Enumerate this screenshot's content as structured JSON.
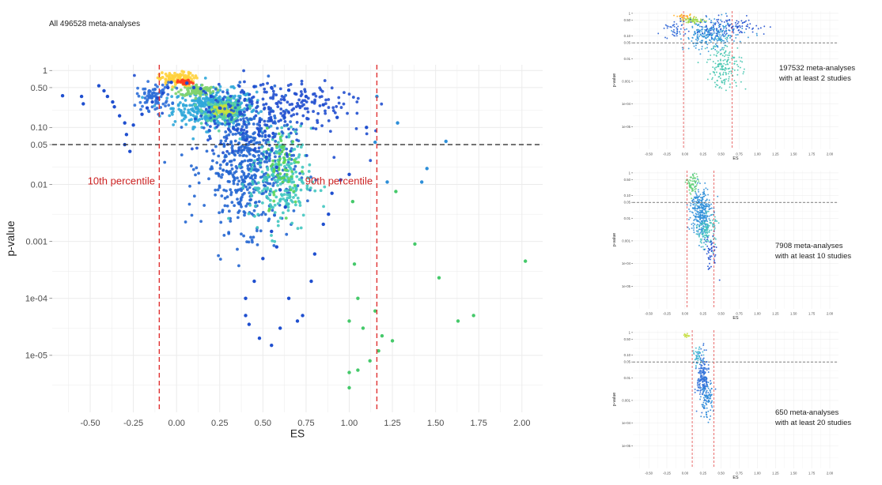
{
  "main_label": "All 496528 meta-analyses",
  "colors": {
    "grid": "#ebebeb",
    "ref_line": "#333333",
    "pct_line": "#e03030",
    "pct_text": "#cc2222"
  },
  "chart_data": [
    {
      "type": "scatter",
      "title": "",
      "xlabel": "ES",
      "ylabel": "p-value",
      "y_scale": "log",
      "xlim": [
        -0.72,
        2.12
      ],
      "ylim_log10": [
        -6,
        0.1
      ],
      "x_ticks": [
        -0.5,
        -0.25,
        0,
        0.25,
        0.5,
        0.75,
        1,
        1.25,
        1.5,
        1.75,
        2
      ],
      "x_tick_labels": [
        "-0.50",
        "-0.25",
        "0.00",
        "0.25",
        "0.50",
        "0.75",
        "1.00",
        "1.25",
        "1.50",
        "1.75",
        "2.00"
      ],
      "y_ticks": [
        1,
        0.5,
        0.1,
        0.05,
        0.01,
        0.001,
        0.0001,
        1e-05
      ],
      "y_tick_labels": [
        "1",
        "0.50",
        "0.10",
        "0.05",
        "0.01",
        "0.001",
        "1e-04",
        "1e-05"
      ],
      "hline": 0.05,
      "percentile_lines": [
        {
          "x": -0.1,
          "label": "10th percentile"
        },
        {
          "x": 1.16,
          "label": "90th percentile"
        }
      ],
      "grid": true,
      "color_encoding": "point density (blue = low, red = high)",
      "points": [
        [
          -0.66,
          0.36
        ],
        [
          -0.55,
          0.35
        ],
        [
          -0.54,
          0.26
        ],
        [
          -0.45,
          0.54
        ],
        [
          -0.42,
          0.44
        ],
        [
          -0.4,
          0.35
        ],
        [
          -0.37,
          0.28
        ],
        [
          -0.36,
          0.23
        ],
        [
          -0.33,
          0.16
        ],
        [
          -0.3,
          0.12
        ],
        [
          -0.29,
          0.075
        ],
        [
          -0.3,
          0.05
        ],
        [
          -0.27,
          0.038
        ],
        [
          -0.25,
          0.11
        ],
        [
          -0.2,
          0.17
        ],
        [
          -0.17,
          0.22
        ],
        [
          -0.14,
          0.28
        ],
        [
          -0.11,
          0.33
        ],
        [
          -0.08,
          0.4
        ],
        [
          -0.05,
          0.5
        ],
        [
          -0.03,
          0.62
        ],
        [
          0.06,
          0.6
        ],
        [
          0.1,
          0.5
        ],
        [
          0.14,
          0.48
        ],
        [
          0.2,
          0.35
        ],
        [
          0.25,
          0.22
        ],
        [
          0.3,
          0.16
        ],
        [
          0.35,
          0.09
        ],
        [
          0.4,
          0.06
        ],
        [
          0.45,
          0.04
        ],
        [
          0.52,
          0.03
        ],
        [
          0.58,
          0.02
        ],
        [
          0.6,
          0.008
        ],
        [
          0.63,
          0.004
        ],
        [
          0.55,
          0.0015
        ],
        [
          0.58,
          0.0008
        ],
        [
          0.5,
          0.0005
        ],
        [
          0.45,
          0.0002
        ],
        [
          0.4,
          0.0001
        ],
        [
          0.4,
          5e-05
        ],
        [
          0.42,
          3.5e-05
        ],
        [
          0.48,
          2e-05
        ],
        [
          0.55,
          1.5e-05
        ],
        [
          0.6,
          3e-05
        ],
        [
          0.7,
          4e-05
        ],
        [
          0.65,
          0.0001
        ],
        [
          0.73,
          5e-05
        ],
        [
          0.78,
          0.0002
        ],
        [
          0.8,
          0.0006
        ],
        [
          0.85,
          0.002
        ],
        [
          0.88,
          0.003
        ],
        [
          0.9,
          0.007
        ],
        [
          0.95,
          0.012
        ],
        [
          1.0,
          0.015
        ],
        [
          1.02,
          0.005
        ],
        [
          1.03,
          0.0004
        ],
        [
          1.05,
          0.0001
        ],
        [
          1.0,
          4e-05
        ],
        [
          1.08,
          3e-05
        ],
        [
          1.15,
          6e-05
        ],
        [
          1.19,
          2.2e-05
        ],
        [
          1.25,
          1.8e-05
        ],
        [
          1.17,
          1.2e-05
        ],
        [
          1.12,
          8e-06
        ],
        [
          1.0,
          5e-06
        ],
        [
          1.05,
          5.5e-06
        ],
        [
          1.0,
          2.7e-06
        ],
        [
          1.27,
          0.0075
        ],
        [
          1.22,
          0.011
        ],
        [
          1.38,
          0.0009
        ],
        [
          1.42,
          0.011
        ],
        [
          1.45,
          0.019
        ],
        [
          1.52,
          0.00023
        ],
        [
          1.56,
          0.057
        ],
        [
          1.63,
          4e-05
        ],
        [
          1.72,
          5e-05
        ],
        [
          2.02,
          0.00045
        ],
        [
          1.15,
          0.055
        ],
        [
          0.93,
          0.15
        ],
        [
          0.85,
          0.25
        ],
        [
          0.75,
          0.35
        ],
        [
          0.65,
          0.45
        ],
        [
          0.55,
          0.5
        ],
        [
          0.45,
          0.52
        ],
        [
          1.1,
          0.1
        ],
        [
          1.16,
          0.35
        ],
        [
          1.28,
          0.12
        ]
      ],
      "clusters": [
        {
          "x": 0.22,
          "y": 0.22,
          "spread_x": 0.12,
          "spread_y_log10": 0.16,
          "count": 430,
          "color": "#2fa7d9"
        },
        {
          "x": 0.28,
          "y": 0.2,
          "spread_x": 0.06,
          "spread_y_log10": 0.09,
          "count": 150,
          "color": "#5ad29b"
        },
        {
          "x": 0.27,
          "y": 0.2,
          "spread_x": 0.03,
          "spread_y_log10": 0.05,
          "count": 70,
          "color": "#c8e03c"
        },
        {
          "x": 0.12,
          "y": 0.45,
          "spread_x": 0.05,
          "spread_y_log10": 0.05,
          "count": 90,
          "color": "#7fd36e"
        },
        {
          "x": 0.0,
          "y": 0.7,
          "spread_x": 0.05,
          "spread_y_log10": 0.06,
          "count": 120,
          "color": "#ffd23c"
        },
        {
          "x": 0.05,
          "y": 0.62,
          "spread_x": 0.02,
          "spread_y_log10": 0.02,
          "count": 40,
          "color": "#ff3c1e"
        },
        {
          "x": -0.13,
          "y": 0.35,
          "spread_x": 0.05,
          "spread_y_log10": 0.12,
          "count": 80,
          "color": "#2f6fd8"
        },
        {
          "x": 0.42,
          "y": 0.02,
          "spread_x": 0.13,
          "spread_y_log10": 0.55,
          "count": 520,
          "color": "#2366d1"
        },
        {
          "x": 0.6,
          "y": 0.012,
          "spread_x": 0.09,
          "spread_y_log10": 0.45,
          "count": 220,
          "color": "#41c7c0"
        },
        {
          "x": 0.62,
          "y": 0.02,
          "spread_x": 0.05,
          "spread_y_log10": 0.35,
          "count": 60,
          "color": "#5cd65a"
        },
        {
          "x": 0.5,
          "y": 0.15,
          "spread_x": 0.22,
          "spread_y_log10": 0.35,
          "count": 180,
          "color": "#1f4fcf"
        },
        {
          "x": 0.7,
          "y": 0.3,
          "spread_x": 0.2,
          "spread_y_log10": 0.15,
          "count": 90,
          "color": "#2450cf"
        }
      ]
    },
    {
      "type": "scatter",
      "title": "",
      "xlabel": "ES",
      "ylabel": "p-value",
      "y_scale": "log",
      "caption_line1": "197532 meta-analyses",
      "caption_line2": "with at least 2 studies",
      "hline": 0.05,
      "percentile_lines": [
        {
          "x": -0.02
        },
        {
          "x": 0.65
        }
      ],
      "x_tick_labels": [
        "-0.50",
        "-0.25",
        "0.00",
        "0.25",
        "0.50",
        "0.75",
        "1.00",
        "1.25",
        "1.50",
        "1.75",
        "2.00"
      ],
      "y_tick_labels": [
        "1",
        "0.50",
        "0.10",
        "0.05",
        "0.01",
        "0.001",
        "1e-04",
        "1e-05"
      ],
      "clusters": [
        {
          "x": 0.35,
          "y": 0.1,
          "spread_x": 0.18,
          "spread_y_log10": 0.3,
          "count": 260,
          "color": "#2f93d9"
        },
        {
          "x": 0.55,
          "y": 0.005,
          "spread_x": 0.12,
          "spread_y_log10": 0.5,
          "count": 170,
          "color": "#46c6b0"
        },
        {
          "x": 0.12,
          "y": 0.5,
          "spread_x": 0.08,
          "spread_y_log10": 0.07,
          "count": 60,
          "color": "#9cd848"
        },
        {
          "x": 0.0,
          "y": 0.7,
          "spread_x": 0.05,
          "spread_y_log10": 0.05,
          "count": 30,
          "color": "#ffb030"
        },
        {
          "x": 0.6,
          "y": 0.25,
          "spread_x": 0.28,
          "spread_y_log10": 0.2,
          "count": 110,
          "color": "#1f4fcf"
        },
        {
          "x": -0.15,
          "y": 0.2,
          "spread_x": 0.07,
          "spread_y_log10": 0.2,
          "count": 40,
          "color": "#2a62d5"
        }
      ]
    },
    {
      "type": "scatter",
      "title": "",
      "xlabel": "ES",
      "ylabel": "p-value",
      "y_scale": "log",
      "caption_line1": "7908 meta-analyses",
      "caption_line2": "with at least 10 studies",
      "hline": 0.05,
      "percentile_lines": [
        {
          "x": 0.03
        },
        {
          "x": 0.4
        }
      ],
      "x_tick_labels": [
        "-0.50",
        "-0.25",
        "0.00",
        "0.25",
        "0.50",
        "0.75",
        "1.00",
        "1.25",
        "1.50",
        "1.75",
        "2.00"
      ],
      "y_tick_labels": [
        "1",
        "0.50",
        "0.10",
        "0.05",
        "0.01",
        "0.001",
        "1e-04",
        "1e-05"
      ],
      "clusters": [
        {
          "x": 0.22,
          "y": 0.02,
          "spread_x": 0.07,
          "spread_y_log10": 0.55,
          "count": 320,
          "color": "#2f8fd9"
        },
        {
          "x": 0.3,
          "y": 0.003,
          "spread_x": 0.06,
          "spread_y_log10": 0.35,
          "count": 120,
          "color": "#44c2c0"
        },
        {
          "x": 0.1,
          "y": 0.3,
          "spread_x": 0.04,
          "spread_y_log10": 0.25,
          "count": 70,
          "color": "#64d27a"
        },
        {
          "x": 0.35,
          "y": 0.0003,
          "spread_x": 0.05,
          "spread_y_log10": 0.4,
          "count": 50,
          "color": "#2050cf"
        }
      ]
    },
    {
      "type": "scatter",
      "title": "",
      "xlabel": "ES",
      "ylabel": "p-value",
      "y_scale": "log",
      "caption_line1": "650 meta-analyses",
      "caption_line2": "with at least 20 studies",
      "hline": 0.05,
      "percentile_lines": [
        {
          "x": 0.1
        },
        {
          "x": 0.4
        }
      ],
      "x_tick_labels": [
        "-0.50",
        "-0.25",
        "0.00",
        "0.25",
        "0.50",
        "0.75",
        "1.00",
        "1.25",
        "1.50",
        "1.75",
        "2.00"
      ],
      "y_tick_labels": [
        "1",
        "0.50",
        "0.10",
        "0.05",
        "0.01",
        "0.001",
        "1e-04",
        "1e-05"
      ],
      "clusters": [
        {
          "x": 0.25,
          "y": 0.01,
          "spread_x": 0.04,
          "spread_y_log10": 0.55,
          "count": 180,
          "color": "#2f6fd8"
        },
        {
          "x": 0.3,
          "y": 0.001,
          "spread_x": 0.04,
          "spread_y_log10": 0.4,
          "count": 90,
          "color": "#2b8ad8"
        },
        {
          "x": 0.18,
          "y": 0.08,
          "spread_x": 0.03,
          "spread_y_log10": 0.2,
          "count": 40,
          "color": "#3fb6d3"
        },
        {
          "x": 0.02,
          "y": 0.7,
          "spread_x": 0.02,
          "spread_y_log10": 0.05,
          "count": 12,
          "color": "#c4dd3a"
        }
      ]
    }
  ]
}
